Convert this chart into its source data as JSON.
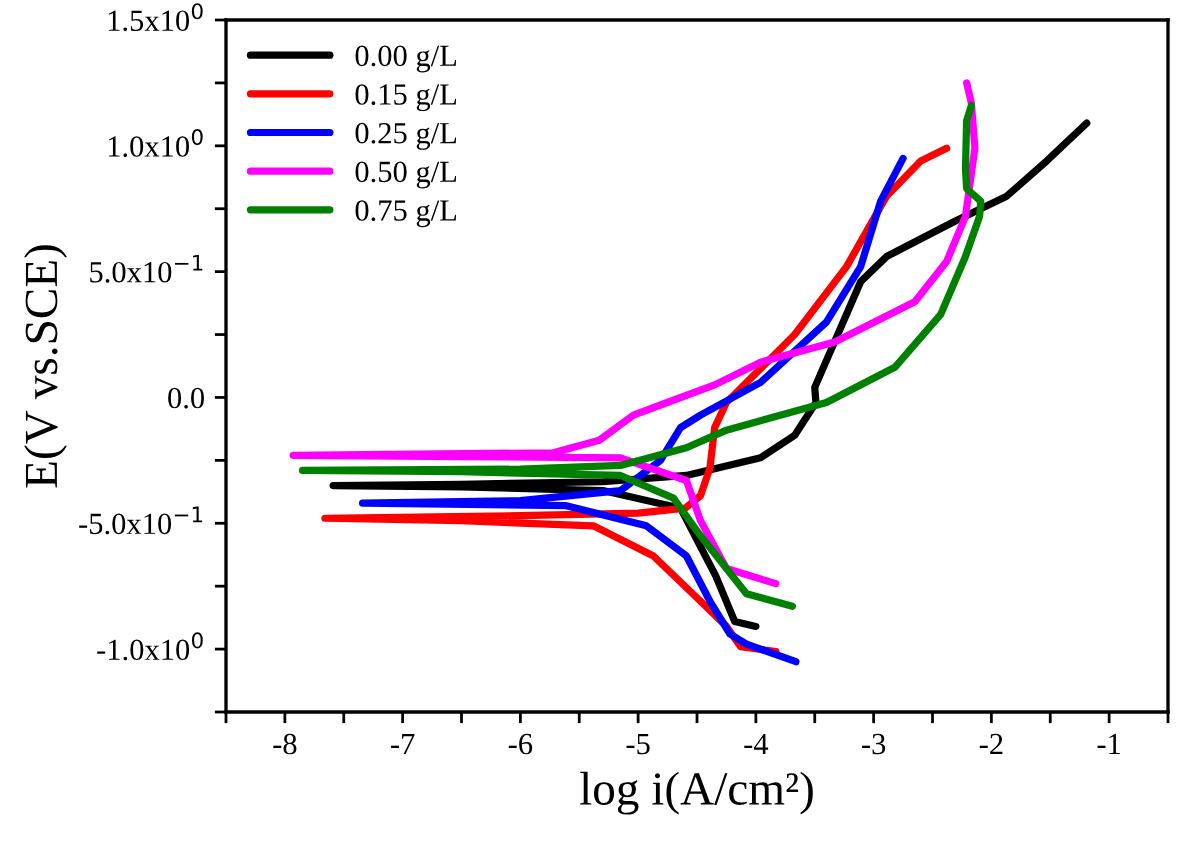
{
  "chart_data": {
    "type": "line",
    "xlabel": "log i(A/cm²)",
    "ylabel": "E(V vs.SCE)",
    "xlim": [
      -8.5,
      -0.5
    ],
    "ylim": [
      -1.25,
      1.5
    ],
    "xticks": [
      {
        "value": -8.5,
        "label": null
      },
      -8,
      {
        "value": -7.5,
        "label": null
      },
      -7,
      {
        "value": -6.5,
        "label": null
      },
      -6,
      {
        "value": -5.5,
        "label": null
      },
      -5,
      {
        "value": -4.5,
        "label": null
      },
      -4,
      {
        "value": -3.5,
        "label": null
      },
      -3,
      {
        "value": -2.5,
        "label": null
      },
      -2,
      {
        "value": -1.5,
        "label": null
      },
      -1,
      {
        "value": -0.5,
        "label": null
      }
    ],
    "yticks": [
      {
        "value": -1.25,
        "label": null
      },
      {
        "value": -1.0,
        "label": "-1.0x10$^{0}$"
      },
      {
        "value": -0.75,
        "label": null
      },
      {
        "value": -0.5,
        "label": "-5.0x10$^{−1}$"
      },
      {
        "value": -0.25,
        "label": null
      },
      {
        "value": 0,
        "label": "0.0"
      },
      {
        "value": 0.25,
        "label": null
      },
      {
        "value": 0.5,
        "label": "5.0x10$^{−1}$"
      },
      {
        "value": 0.75,
        "label": null
      },
      {
        "value": 1.0,
        "label": "1.0x10$^{0}$"
      },
      {
        "value": 1.25,
        "label": null
      },
      {
        "value": 1.5,
        "label": "1.5x10$^{0}$"
      }
    ],
    "grid": false,
    "legend": "top left",
    "line_style": "solid",
    "marker": "none",
    "series": [
      {
        "name": "0.00 g/L",
        "color": "#000000",
        "x": [
          -4.0,
          -4.18,
          -4.34,
          -4.64,
          -5.3,
          -6.5,
          -7.59,
          -6.5,
          -5.3,
          -4.59,
          -3.96,
          -3.67,
          -3.49,
          -3.5,
          -3.11,
          -2.89,
          -2.31,
          -1.87,
          -1.53,
          -1.19
        ],
        "values": [
          -0.91,
          -0.89,
          -0.71,
          -0.44,
          -0.37,
          -0.355,
          -0.35,
          -0.345,
          -0.335,
          -0.31,
          -0.24,
          -0.15,
          -0.02,
          0.04,
          0.46,
          0.56,
          0.7,
          0.8,
          0.94,
          1.09
        ]
      },
      {
        "name": "0.15 g/L",
        "color": "#ff0000",
        "x": [
          -3.83,
          -4.13,
          -4.25,
          -4.47,
          -4.87,
          -5.38,
          -6.5,
          -7.66,
          -6.0,
          -5.0,
          -4.6,
          -4.47,
          -4.39,
          -4.35,
          -4.25,
          -3.67,
          -3.23,
          -2.89,
          -2.6,
          -2.38
        ],
        "values": [
          -1.01,
          -0.99,
          -0.91,
          -0.81,
          -0.63,
          -0.51,
          -0.49,
          -0.48,
          -0.47,
          -0.46,
          -0.44,
          -0.39,
          -0.28,
          -0.12,
          -0.02,
          0.25,
          0.52,
          0.8,
          0.94,
          0.99
        ]
      },
      {
        "name": "0.25 g/L",
        "color": "#0000ff",
        "x": [
          -3.66,
          -4.08,
          -4.22,
          -4.39,
          -4.59,
          -4.93,
          -5.61,
          -7.34,
          -6.0,
          -5.15,
          -4.81,
          -4.64,
          -4.47,
          -3.96,
          -3.4,
          -3.11,
          -2.94,
          -2.75
        ],
        "values": [
          -1.05,
          -0.98,
          -0.94,
          -0.81,
          -0.63,
          -0.51,
          -0.43,
          -0.42,
          -0.41,
          -0.37,
          -0.25,
          -0.12,
          -0.07,
          0.06,
          0.3,
          0.52,
          0.78,
          0.95
        ]
      },
      {
        "name": "0.50 g/L",
        "color": "#ff00ff",
        "x": [
          -3.83,
          -4.25,
          -4.47,
          -4.59,
          -5.15,
          -6.5,
          -7.93,
          -5.72,
          -5.33,
          -5.04,
          -4.81,
          -4.35,
          -3.96,
          -3.33,
          -2.65,
          -2.38,
          -2.22,
          -2.14,
          -2.17,
          -2.21
        ],
        "values": [
          -0.74,
          -0.68,
          -0.49,
          -0.33,
          -0.24,
          -0.235,
          -0.23,
          -0.22,
          -0.17,
          -0.07,
          -0.03,
          0.05,
          0.14,
          0.22,
          0.38,
          0.54,
          0.72,
          0.99,
          1.17,
          1.25
        ]
      },
      {
        "name": "0.75 g/L",
        "color": "#008000",
        "x": [
          -3.69,
          -4.08,
          -4.3,
          -4.47,
          -4.7,
          -5.15,
          -6.5,
          -7.85,
          -6.0,
          -5.15,
          -4.59,
          -4.25,
          -3.4,
          -2.82,
          -2.43,
          -2.22,
          -2.1,
          -2.09,
          -2.21,
          -2.22,
          -2.21,
          -2.17
        ],
        "values": [
          -0.83,
          -0.78,
          -0.65,
          -0.55,
          -0.4,
          -0.31,
          -0.295,
          -0.29,
          -0.285,
          -0.27,
          -0.2,
          -0.13,
          -0.02,
          0.12,
          0.33,
          0.56,
          0.72,
          0.78,
          0.83,
          0.91,
          1.1,
          1.16
        ]
      }
    ]
  }
}
